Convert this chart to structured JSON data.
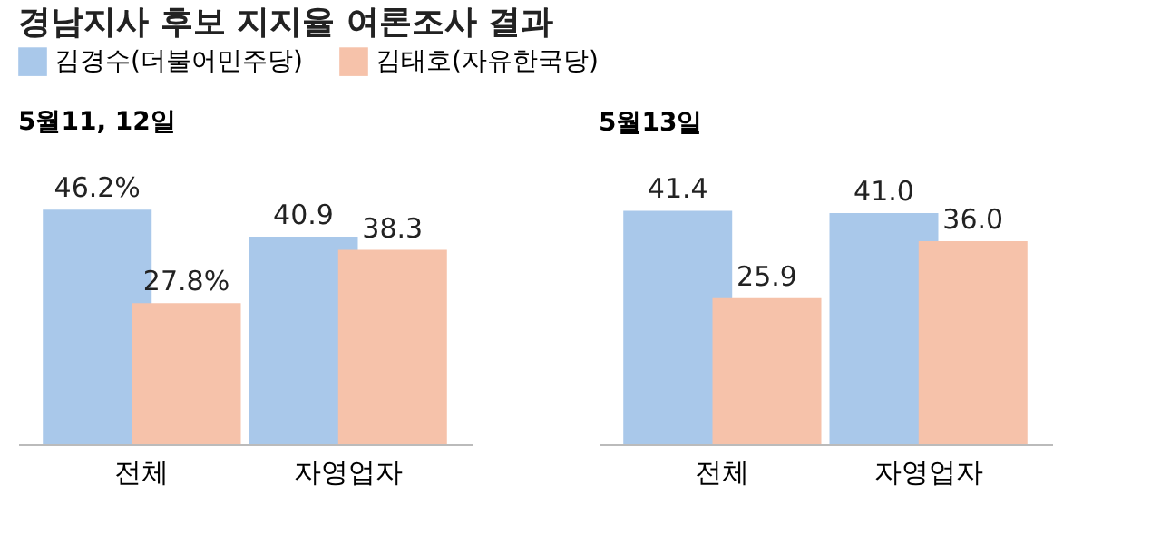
{
  "chart_data": [
    {
      "type": "bar",
      "title": "경남지사 후보 지지율 여론조사 결과",
      "subtitle": "5월11, 12일",
      "legend": "top",
      "categories": [
        "전체",
        "자영업자"
      ],
      "series": [
        {
          "name": "김경수(더불어민주당)",
          "color": "#a9c8ea",
          "values": [
            46.2,
            40.9
          ],
          "value_labels": [
            "46.2%",
            "40.9"
          ]
        },
        {
          "name": "김태호(자유한국당)",
          "color": "#f6c2aa",
          "values": [
            27.8,
            38.3
          ],
          "value_labels": [
            "27.8%",
            "38.3"
          ]
        }
      ]
    },
    {
      "type": "bar",
      "subtitle": "5월13일",
      "categories": [
        "전체",
        "자영업자"
      ],
      "series": [
        {
          "color": "#a9c8ea",
          "values": [
            41.4,
            41.0
          ],
          "value_labels": [
            "41.4",
            "41.0"
          ]
        },
        {
          "color": "#f6c2aa",
          "values": [
            25.9,
            36.0
          ],
          "value_labels": [
            "25.9",
            "36.0"
          ]
        }
      ]
    }
  ]
}
